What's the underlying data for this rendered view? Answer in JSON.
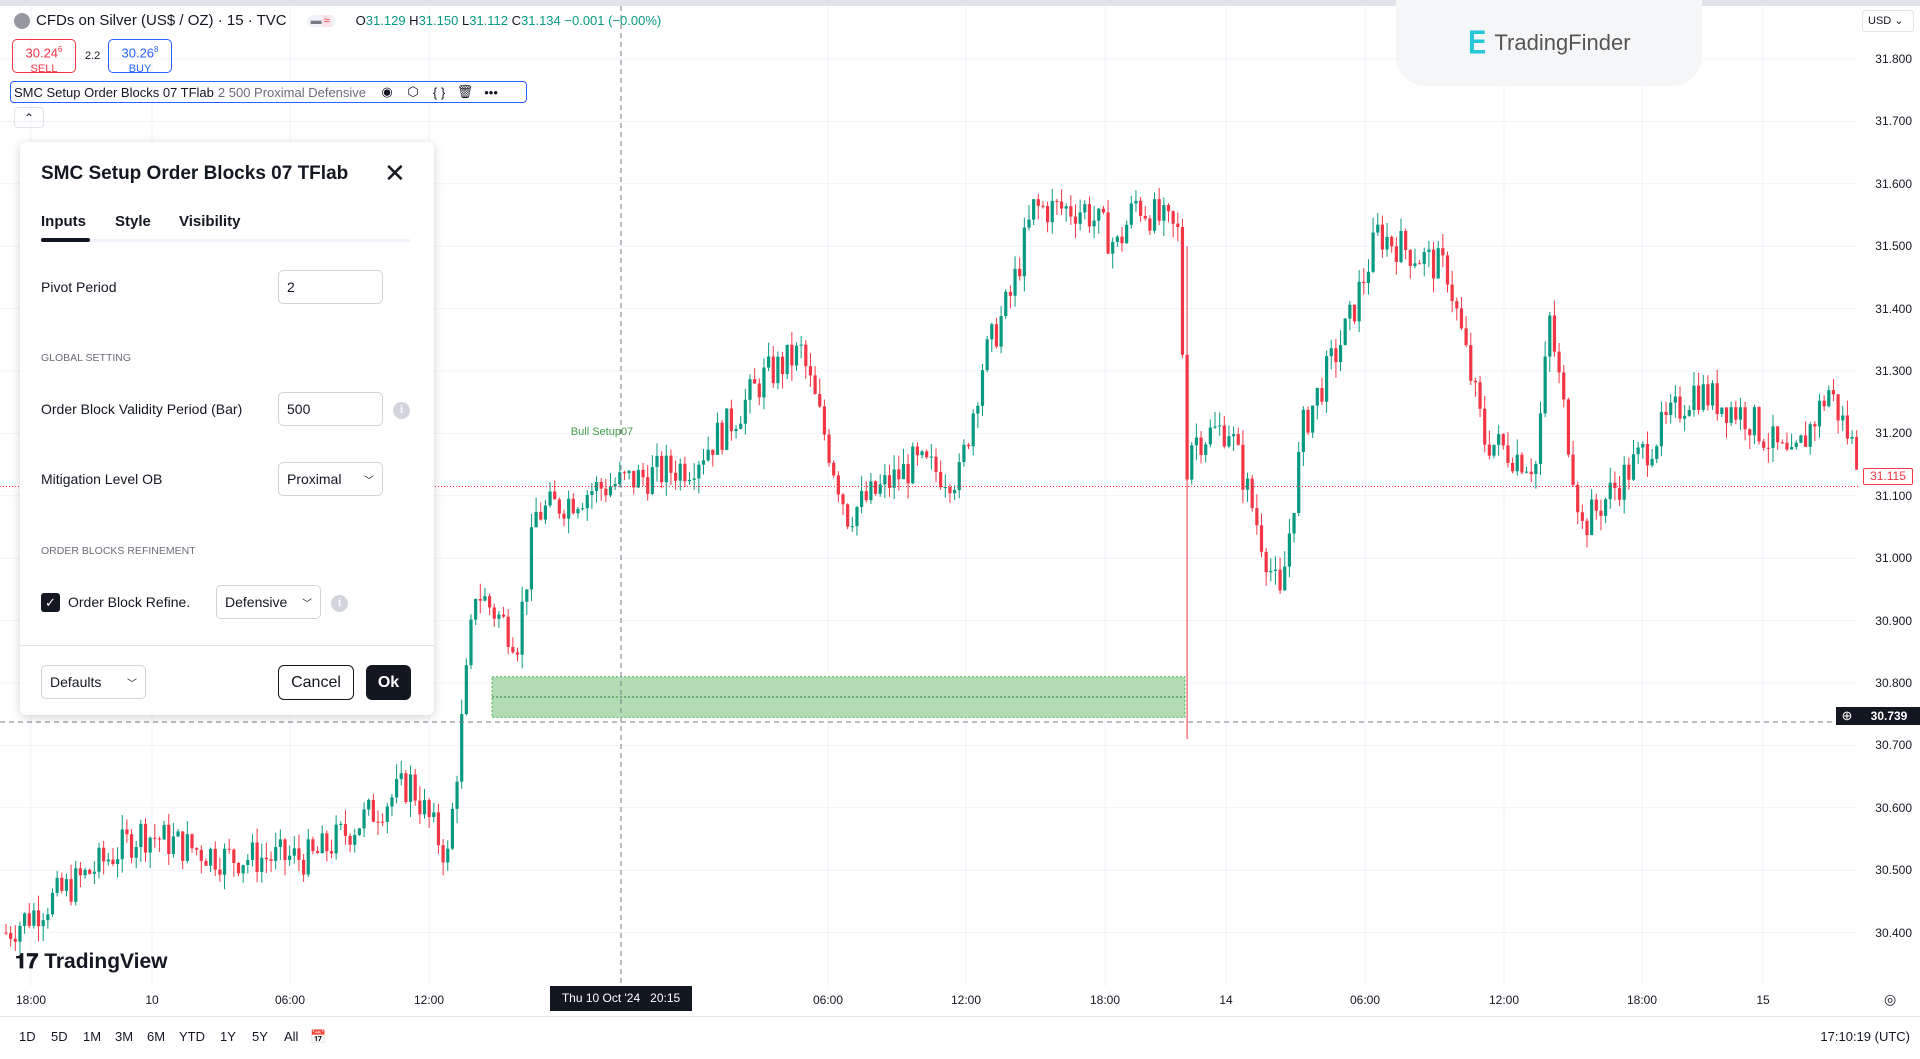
{
  "header": {
    "symbol": "CFDs on Silver (US$ / OZ) · 15 · TVC",
    "ohlc": {
      "o": "31.129",
      "h": "31.150",
      "l": "31.112",
      "c": "31.134",
      "change": "−0.001 (−0.00%)"
    },
    "o_label": "O",
    "h_label": "H",
    "l_label": "L",
    "c_label": "C"
  },
  "trade": {
    "sell_price": "30.24",
    "sell_sup": "6",
    "sell_label": "SELL",
    "spread": "2.2",
    "buy_price": "30.26",
    "buy_sup": "8",
    "buy_label": "BUY"
  },
  "legend": {
    "name": "SMC Setup Order Blocks 07 TFlab",
    "params": "2 500 Proximal Defensive"
  },
  "dialog": {
    "title": "SMC Setup Order Blocks 07 TFlab",
    "tabs": [
      "Inputs",
      "Style",
      "Visibility"
    ],
    "active_tab": "Inputs",
    "pivot_label": "Pivot Period",
    "pivot_value": "2",
    "global_section": "GLOBAL SETTING",
    "validity_label": "Order Block Validity Period (Bar)",
    "validity_value": "500",
    "mitigation_label": "Mitigation Level OB",
    "mitigation_value": "Proximal",
    "refine_section": "ORDER BLOCKS REFINEMENT",
    "refine_label": "Order Block Refine.",
    "refine_checked": true,
    "refine_value": "Defensive",
    "defaults": "Defaults",
    "cancel": "Cancel",
    "ok": "Ok"
  },
  "chart": {
    "currency": "USD",
    "price_ticks": [
      "31.800",
      "31.700",
      "31.600",
      "31.500",
      "31.400",
      "31.300",
      "31.200",
      "31.100",
      "31.000",
      "30.900",
      "30.800",
      "30.700",
      "30.600",
      "30.500",
      "30.400"
    ],
    "last_price": "31.115",
    "crosshair_price": "30.739",
    "crosshair_time": "Thu 10 Oct '24   20:15",
    "time_ticks": [
      "18:00",
      "10",
      "06:00",
      "12:00",
      "06:00",
      "12:00",
      "18:00",
      "14",
      "06:00",
      "12:00",
      "18:00",
      "15"
    ],
    "annotation": "Bull Setup07",
    "order_block": {
      "top": 30.81,
      "bottom": 30.745
    },
    "up_color": "#089981",
    "down_color": "#f23645",
    "ob_color": "#a5d6a7",
    "price_path": [
      [
        0,
        30.4
      ],
      [
        15,
        30.48
      ],
      [
        29,
        30.56
      ],
      [
        47,
        30.52
      ],
      [
        66,
        30.52
      ],
      [
        87,
        30.64
      ],
      [
        95,
        30.52
      ],
      [
        101,
        30.95
      ],
      [
        110,
        30.87
      ],
      [
        114,
        31.07
      ],
      [
        126,
        31.11
      ],
      [
        137,
        31.13
      ],
      [
        147,
        31.15
      ],
      [
        155,
        31.21
      ],
      [
        163,
        31.29
      ],
      [
        171,
        31.33
      ],
      [
        181,
        31.07
      ],
      [
        195,
        31.15
      ],
      [
        205,
        31.13
      ],
      [
        210,
        31.31
      ],
      [
        216,
        31.42
      ],
      [
        221,
        31.56
      ],
      [
        232,
        31.56
      ],
      [
        239,
        31.5
      ],
      [
        243,
        31.57
      ],
      [
        252,
        31.52
      ],
      [
        254,
        31.15
      ],
      [
        255,
        31.19
      ],
      [
        263,
        31.21
      ],
      [
        274,
        30.93
      ],
      [
        279,
        31.21
      ],
      [
        289,
        31.38
      ],
      [
        295,
        31.52
      ],
      [
        310,
        31.46
      ],
      [
        318,
        31.19
      ],
      [
        329,
        31.15
      ],
      [
        332,
        31.38
      ],
      [
        339,
        31.05
      ],
      [
        350,
        31.15
      ],
      [
        363,
        31.27
      ],
      [
        374,
        31.23
      ],
      [
        384,
        31.15
      ],
      [
        392,
        31.27
      ],
      [
        400,
        31.13
      ]
    ]
  },
  "branding": {
    "tradingfinder": "TradingFinder",
    "tradingview": "TradingView"
  },
  "bottom": {
    "ranges": [
      "1D",
      "5D",
      "1M",
      "3M",
      "6M",
      "YTD",
      "1Y",
      "5Y",
      "All"
    ],
    "clock": "17:10:19 (UTC)"
  }
}
